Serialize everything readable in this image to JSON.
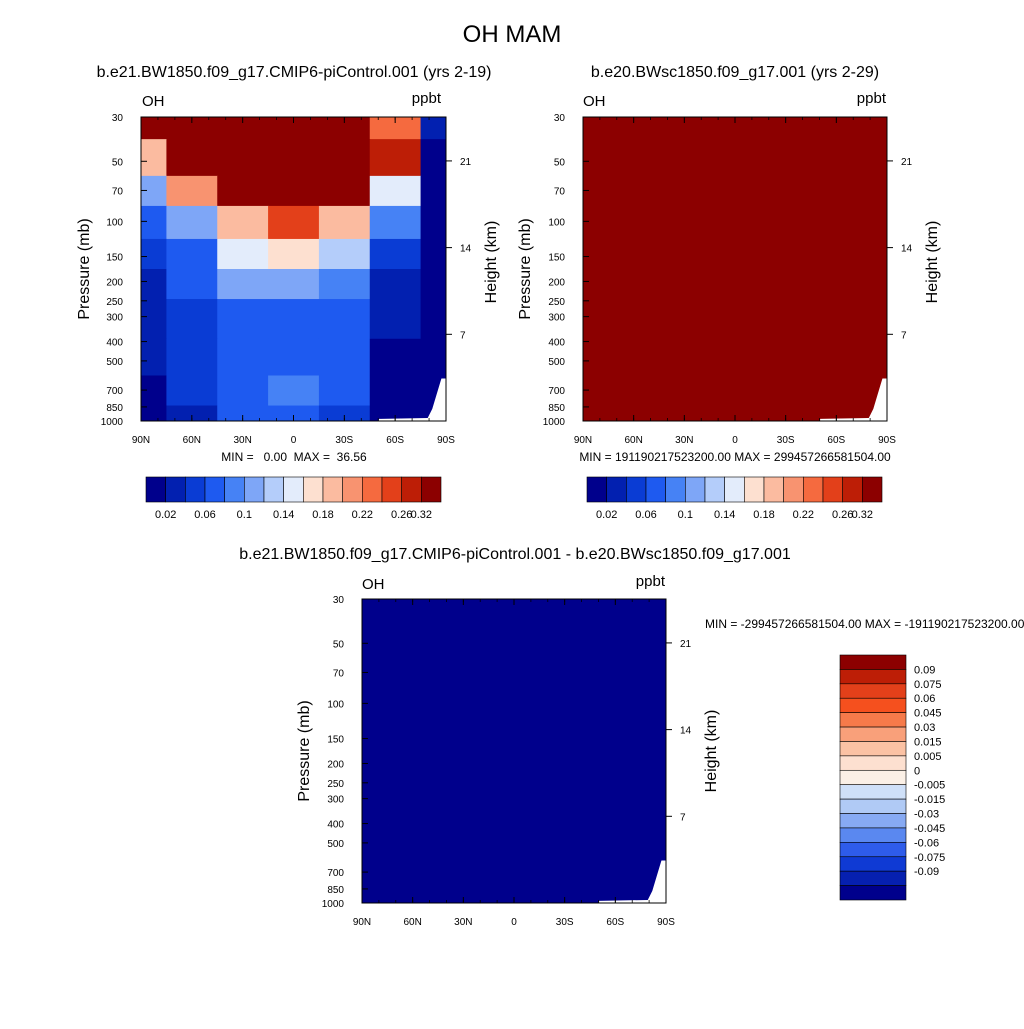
{
  "page_title": "OH MAM",
  "chart_data": [
    {
      "type": "heatmap",
      "title": "b.e21.BW1850.f09_g17.CMIP6-piControl.001 (yrs 2-19)",
      "variable": "OH",
      "units": "ppbt",
      "xlabel": "",
      "ylabel": "Pressure (mb)",
      "ylabel_right": "Height (km)",
      "x_ticks": [
        "90N",
        "60N",
        "30N",
        "0",
        "30S",
        "60S",
        "90S"
      ],
      "y_ticks": [
        30,
        50,
        70,
        100,
        150,
        200,
        250,
        300,
        400,
        500,
        700,
        850,
        1000
      ],
      "y_ticks_right": [
        21,
        14,
        7
      ],
      "y_scale": "log",
      "ylim": [
        1000,
        30
      ],
      "latitudes": [
        90,
        60,
        30,
        0,
        -30,
        -60,
        -90
      ],
      "pressures": [
        30,
        50,
        70,
        100,
        150,
        200,
        300,
        500,
        700,
        1000
      ],
      "values": [
        [
          0.34,
          0.34,
          0.34,
          0.34,
          0.34,
          0.26,
          0.04
        ],
        [
          0.21,
          0.34,
          0.34,
          0.34,
          0.34,
          0.3,
          0.02
        ],
        [
          0.12,
          0.24,
          0.32,
          0.34,
          0.32,
          0.18,
          0.01
        ],
        [
          0.07,
          0.13,
          0.22,
          0.28,
          0.22,
          0.1,
          0.01
        ],
        [
          0.05,
          0.08,
          0.17,
          0.2,
          0.15,
          0.05,
          0.01
        ],
        [
          0.04,
          0.07,
          0.12,
          0.13,
          0.1,
          0.03,
          0.01
        ],
        [
          0.04,
          0.06,
          0.09,
          0.09,
          0.07,
          0.03,
          0.01
        ],
        [
          0.03,
          0.06,
          0.08,
          0.09,
          0.07,
          0.02,
          0.01
        ],
        [
          0.02,
          0.05,
          0.09,
          0.1,
          0.08,
          0.02,
          0.01
        ],
        [
          0.01,
          0.03,
          0.08,
          0.08,
          0.06,
          0.01,
          0.01
        ]
      ],
      "min_max_label": "MIN =   0.00  MAX =  36.56",
      "colorbar_labels": [
        "0.02",
        "0.06",
        "0.1",
        "0.14",
        "0.18",
        "0.22",
        "0.26",
        "0.32"
      ]
    },
    {
      "type": "heatmap",
      "title": "b.e20.BWsc1850.f09_g17.001 (yrs 2-29)",
      "variable": "OH",
      "units": "ppbt",
      "xlabel": "",
      "ylabel": "Pressure (mb)",
      "ylabel_right": "Height (km)",
      "x_ticks": [
        "90N",
        "60N",
        "30N",
        "0",
        "30S",
        "60S",
        "90S"
      ],
      "y_ticks": [
        30,
        50,
        70,
        100,
        150,
        200,
        250,
        300,
        400,
        500,
        700,
        850,
        1000
      ],
      "y_ticks_right": [
        21,
        14,
        7
      ],
      "fill": "uniform maximum (dark red)",
      "min_max_label": "MIN = 191190217523200.00  MAX = 299457266581504.00",
      "colorbar_labels": [
        "0.02",
        "0.06",
        "0.1",
        "0.14",
        "0.18",
        "0.22",
        "0.26",
        "0.32"
      ]
    },
    {
      "type": "heatmap",
      "title": "b.e21.BW1850.f09_g17.CMIP6-piControl.001 - b.e20.BWsc1850.f09_g17.001",
      "variable": "OH",
      "units": "ppbt",
      "xlabel": "",
      "ylabel": "Pressure (mb)",
      "ylabel_right": "Height (km)",
      "x_ticks": [
        "90N",
        "60N",
        "30N",
        "0",
        "30S",
        "60S",
        "90S"
      ],
      "y_ticks": [
        30,
        50,
        70,
        100,
        150,
        200,
        250,
        300,
        400,
        500,
        700,
        850,
        1000
      ],
      "y_ticks_right": [
        21,
        14,
        7
      ],
      "fill": "uniform minimum (dark blue)",
      "min_max_label": "MIN = -299457266581504.00  MAX = -191190217523200.00",
      "colorbar_labels": [
        "0.09",
        "0.075",
        "0.06",
        "0.045",
        "0.03",
        "0.015",
        "0.005",
        "0",
        "-0.005",
        "-0.015",
        "-0.03",
        "-0.045",
        "-0.06",
        "-0.075",
        "-0.09"
      ]
    }
  ],
  "colors": {
    "seq_palette": [
      "#00008c",
      "#0220b0",
      "#0a3cd4",
      "#1e5af0",
      "#4682f5",
      "#7ea6f7",
      "#b4cdfa",
      "#e3ecfb",
      "#fde0d0",
      "#fbbba0",
      "#f89370",
      "#f56a3f",
      "#e3401a",
      "#bd1e06",
      "#8c0000"
    ],
    "div_palette": [
      "#8c0000",
      "#bd1e06",
      "#e3401a",
      "#f5501e",
      "#f67a4a",
      "#f9a07a",
      "#fbc2a4",
      "#fde0d0",
      "#fbf0e6",
      "#cfe0f8",
      "#b0caf5",
      "#87aaf3",
      "#5a88f0",
      "#2e5cea",
      "#0f3ad4",
      "#0620b0",
      "#00008c"
    ]
  }
}
